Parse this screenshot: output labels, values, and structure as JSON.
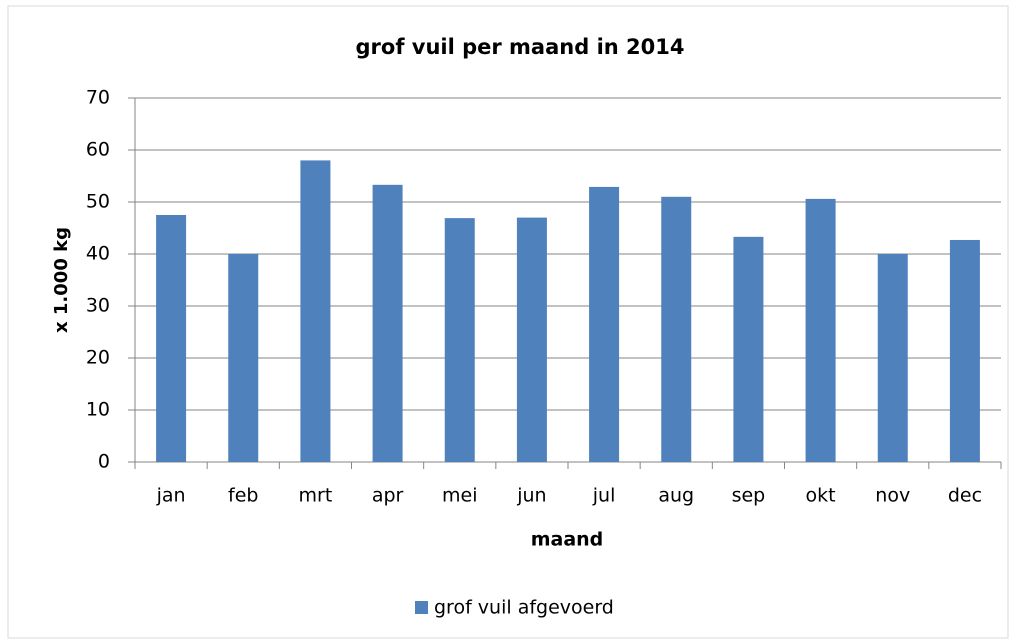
{
  "chart_data": {
    "type": "bar",
    "title": "grof vuil per maand  in 2014",
    "x_label": "maand",
    "y_label": "x 1.000 kg",
    "categories": [
      "jan",
      "feb",
      "mrt",
      "apr",
      "mei",
      "jun",
      "jul",
      "aug",
      "sep",
      "okt",
      "nov",
      "dec"
    ],
    "series": [
      {
        "name": "grof vuil afgevoerd",
        "color": "#4f81bd",
        "values": [
          47.5,
          40,
          58,
          53.3,
          46.9,
          47,
          52.9,
          51,
          43.3,
          50.6,
          40,
          42.7
        ]
      }
    ],
    "ylim": [
      0,
      70
    ],
    "yticks": [
      0,
      10,
      20,
      30,
      40,
      50,
      60,
      70
    ],
    "grid": true,
    "legend": "bottom"
  }
}
